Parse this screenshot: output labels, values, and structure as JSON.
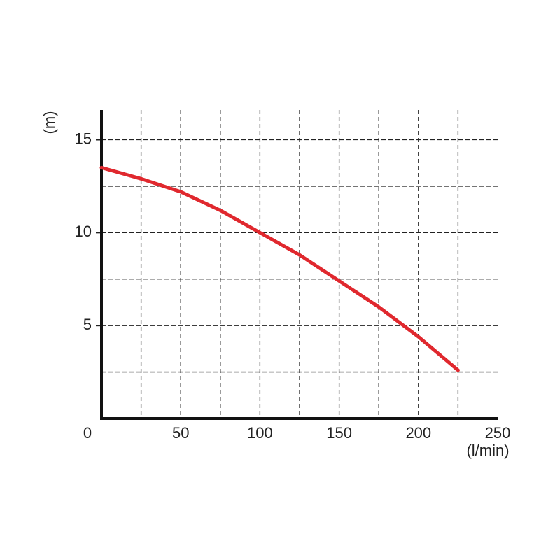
{
  "chart_data": {
    "type": "line",
    "y_label": "(m)",
    "x_label": "(l/min)",
    "x": [
      0,
      25,
      50,
      75,
      100,
      125,
      150,
      175,
      200,
      225
    ],
    "series": [
      {
        "color": "#e0282e",
        "values": [
          13.5,
          12.9,
          12.2,
          11.2,
          10.0,
          8.8,
          7.4,
          6.0,
          4.4,
          2.6
        ]
      }
    ],
    "xlim": [
      0,
      250
    ],
    "ylim": [
      0,
      16.6
    ],
    "xticks": [
      0,
      50,
      100,
      150,
      200,
      250
    ],
    "yticks": [
      5,
      10,
      15
    ],
    "xgrid": [
      25,
      50,
      75,
      100,
      125,
      150,
      175,
      200,
      225
    ],
    "ygrid": [
      2.5,
      5,
      7.5,
      10,
      12.5,
      15
    ],
    "grid": true
  }
}
